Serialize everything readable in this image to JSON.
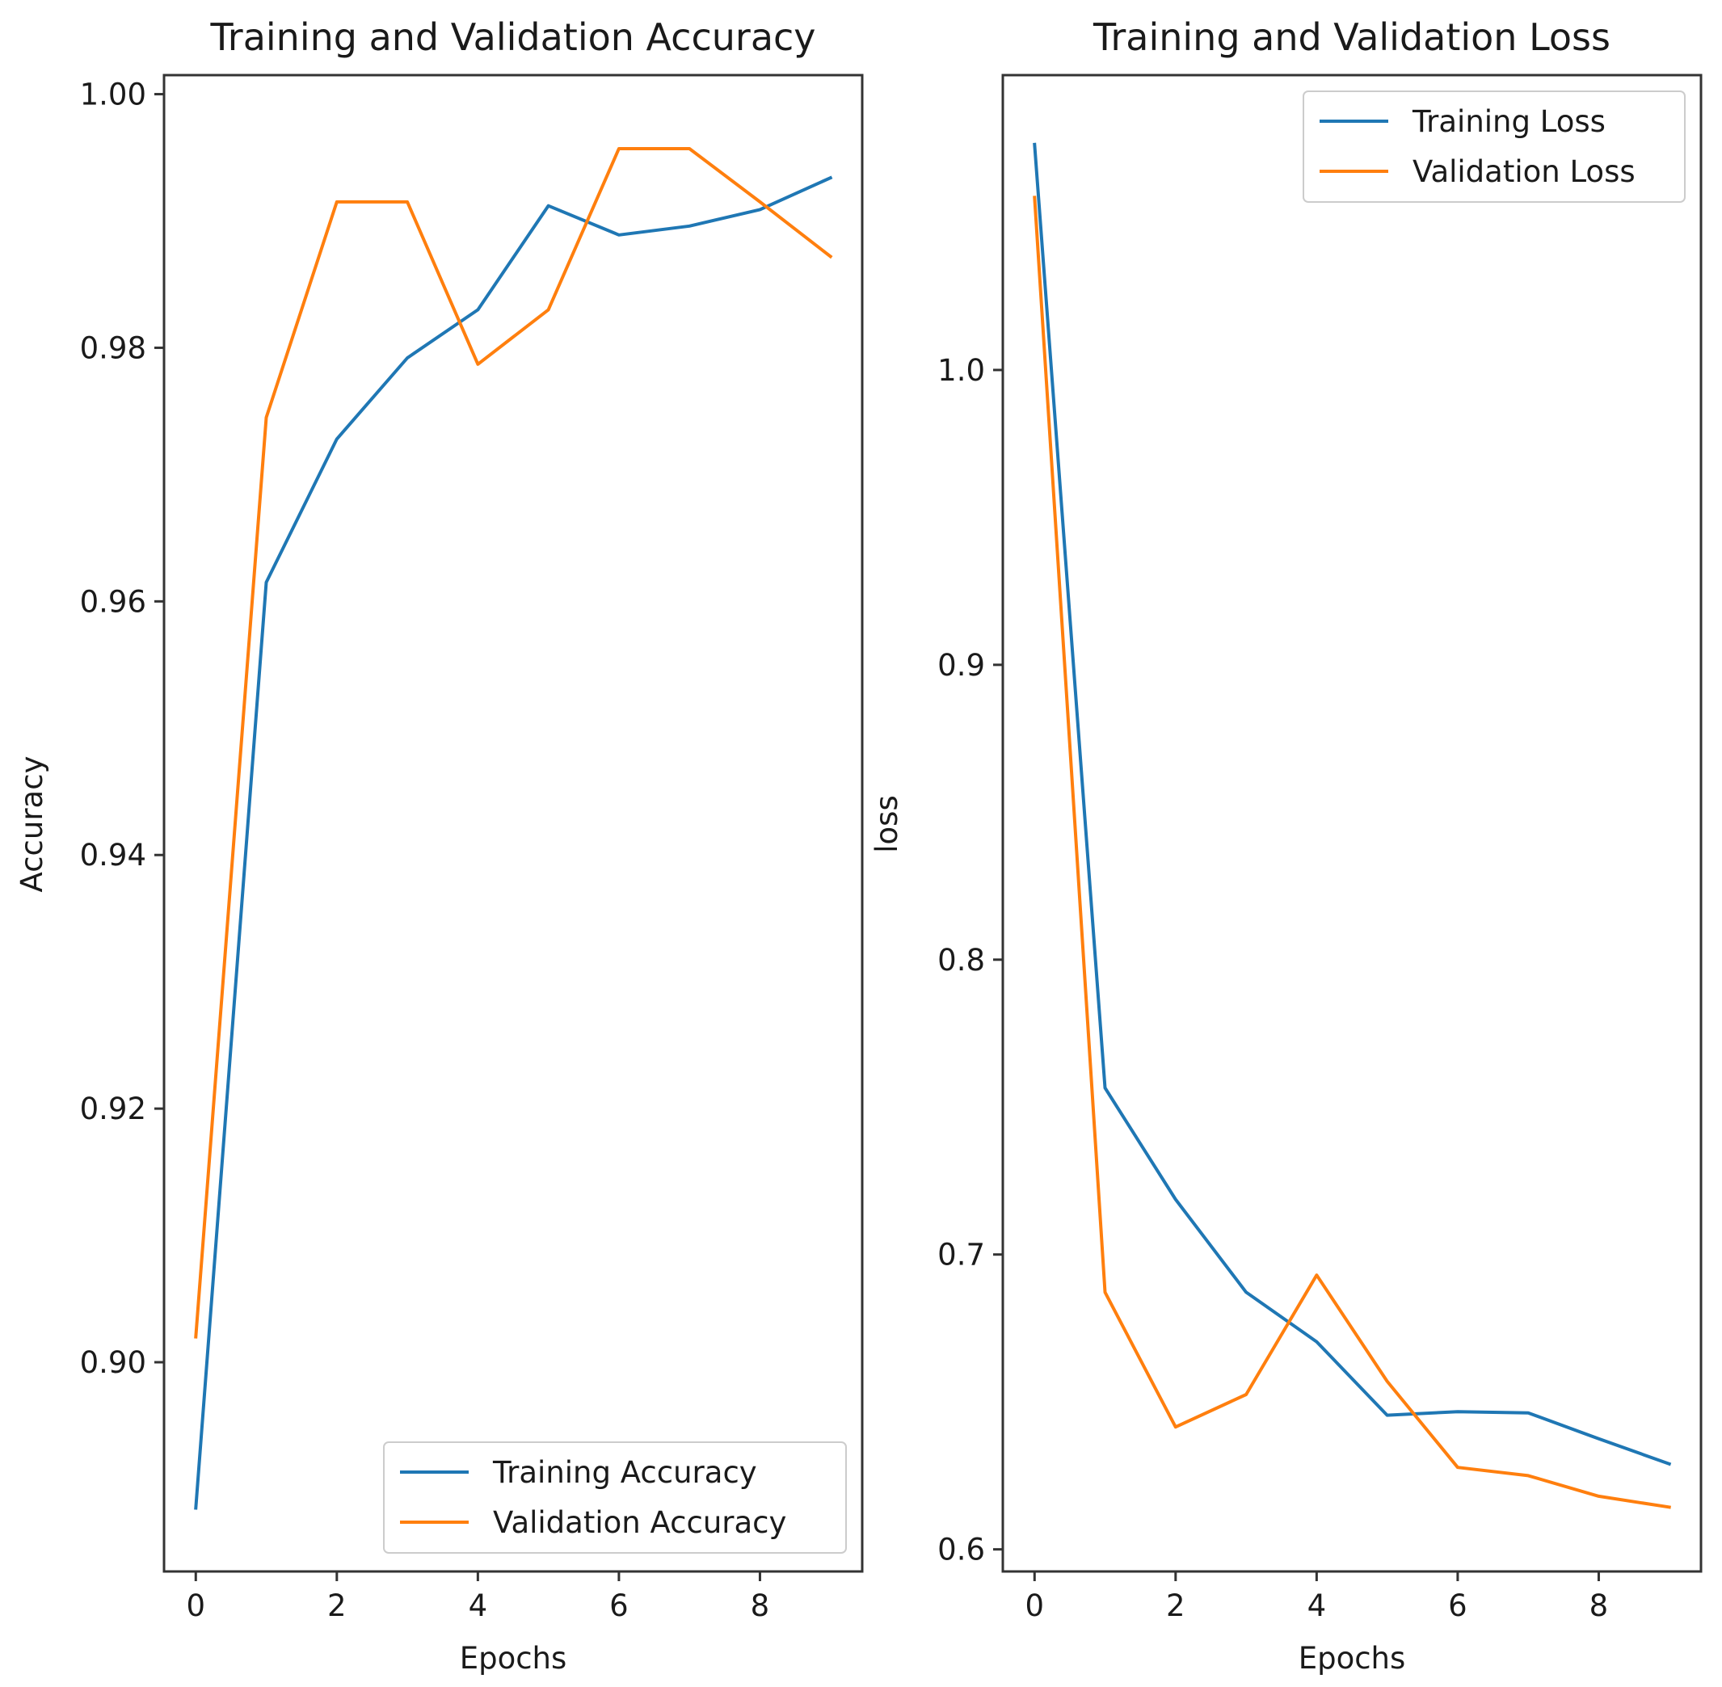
{
  "chart_data": [
    {
      "type": "line",
      "title": "Training and Validation Accuracy",
      "xlabel": "Epochs",
      "ylabel": "Accuracy",
      "xlim": [
        -0.45,
        9.45
      ],
      "ylim": [
        0.8835,
        1.0015
      ],
      "xticks": [
        0,
        2,
        4,
        6,
        8
      ],
      "xtick_labels": [
        "0",
        "2",
        "4",
        "6",
        "8"
      ],
      "yticks": [
        0.9,
        0.92,
        0.94,
        0.96,
        0.98,
        1.0
      ],
      "ytick_labels": [
        "0.90",
        "0.92",
        "0.94",
        "0.96",
        "0.98",
        "1.00"
      ],
      "grid": false,
      "legend_position": "lower-right",
      "x": [
        0,
        1,
        2,
        3,
        4,
        5,
        6,
        7,
        8,
        9
      ],
      "series": [
        {
          "name": "Training Accuracy",
          "color": "#1f77b4",
          "values": [
            0.8885,
            0.9615,
            0.9728,
            0.9792,
            0.983,
            0.9912,
            0.9889,
            0.9896,
            0.9909,
            0.9934
          ]
        },
        {
          "name": "Validation Accuracy",
          "color": "#ff7f0e",
          "values": [
            0.902,
            0.9745,
            0.9915,
            0.9915,
            0.9787,
            0.983,
            0.9957,
            0.9957,
            0.9915,
            0.9872
          ]
        }
      ]
    },
    {
      "type": "line",
      "title": "Training and Validation Loss",
      "xlabel": "Epochs",
      "ylabel": "loss",
      "xlim": [
        -0.45,
        9.45
      ],
      "ylim": [
        0.5925,
        1.1
      ],
      "xticks": [
        0,
        2,
        4,
        6,
        8
      ],
      "xtick_labels": [
        "0",
        "2",
        "4",
        "6",
        "8"
      ],
      "yticks": [
        0.6,
        0.7,
        0.8,
        0.9,
        1.0
      ],
      "ytick_labels": [
        "0.6",
        "0.7",
        "0.8",
        "0.9",
        "1.0"
      ],
      "grid": false,
      "legend_position": "upper-right",
      "x": [
        0,
        1,
        2,
        3,
        4,
        5,
        6,
        7,
        8,
        9
      ],
      "series": [
        {
          "name": "Training Loss",
          "color": "#1f77b4",
          "values": [
            1.0765,
            0.7565,
            0.7187,
            0.6872,
            0.6704,
            0.6455,
            0.6467,
            0.6463,
            0.6375,
            0.629
          ]
        },
        {
          "name": "Validation Loss",
          "color": "#ff7f0e",
          "values": [
            1.0585,
            0.6872,
            0.6415,
            0.6525,
            0.693,
            0.657,
            0.6278,
            0.625,
            0.618,
            0.6143
          ]
        }
      ]
    }
  ]
}
